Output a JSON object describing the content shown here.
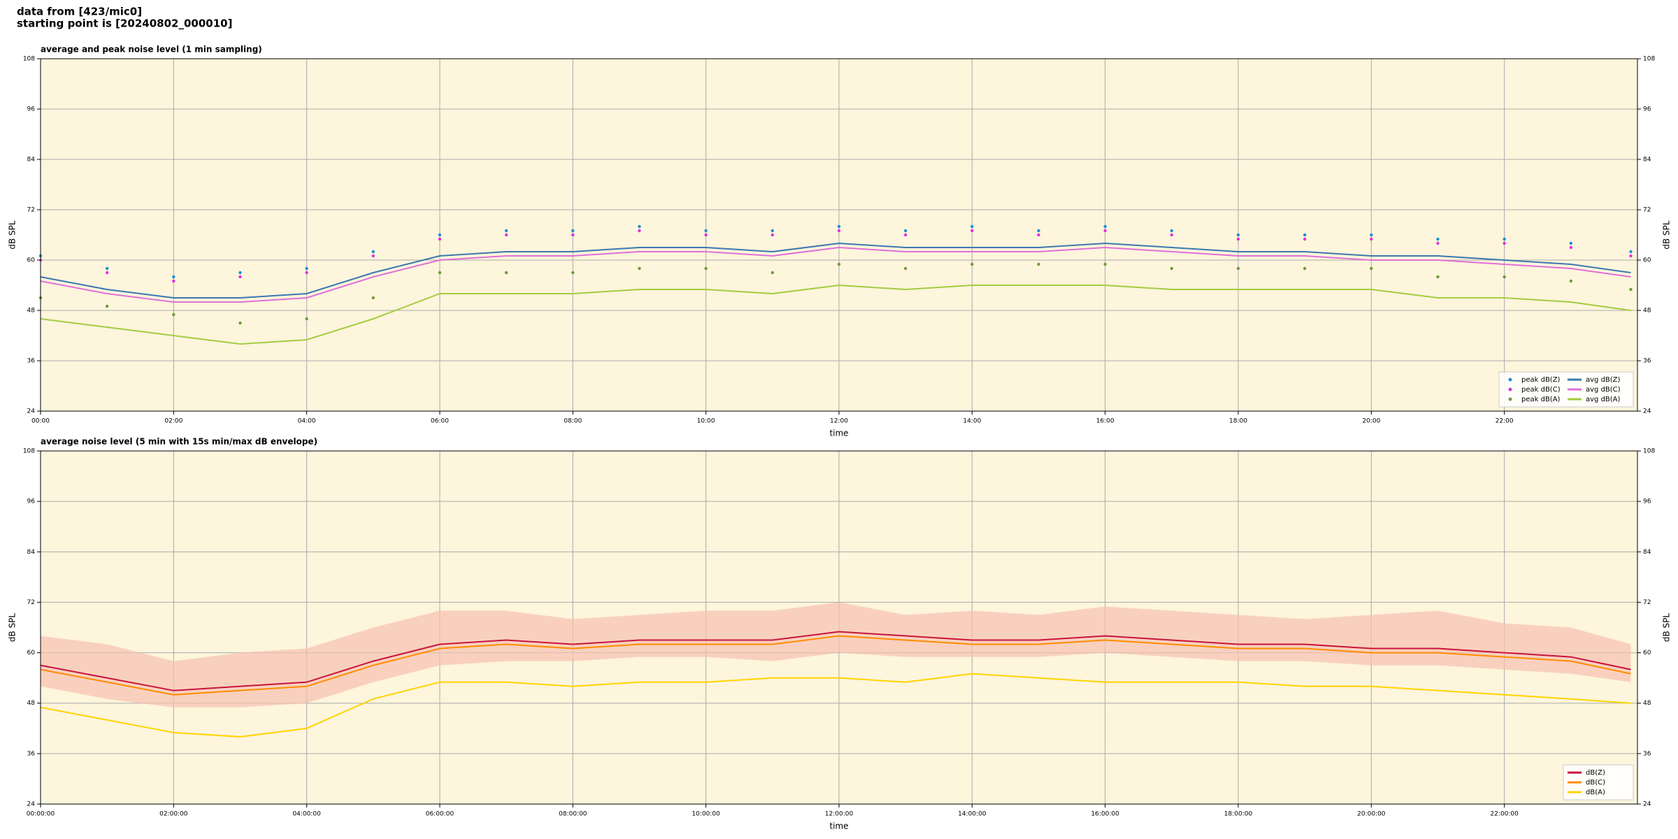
{
  "header": {
    "lines": [
      "data from [423/mic0]",
      "starting point is [20240802_000010]"
    ]
  },
  "chart_data": [
    {
      "type": "line",
      "title": "average and peak noise level (1 min sampling)",
      "xlabel": "time",
      "ylabel": "dB SPL",
      "xlim": [
        0,
        24
      ],
      "ylim": [
        24,
        108
      ],
      "yticks": [
        24,
        36,
        48,
        60,
        72,
        84,
        96,
        108
      ],
      "xticks": [
        {
          "value": 0,
          "label": "00:00"
        },
        {
          "value": 2,
          "label": "02:00"
        },
        {
          "value": 4,
          "label": "04:00"
        },
        {
          "value": 6,
          "label": "06:00"
        },
        {
          "value": 8,
          "label": "08:00"
        },
        {
          "value": 10,
          "label": "10:00"
        },
        {
          "value": 12,
          "label": "12:00"
        },
        {
          "value": 14,
          "label": "14:00"
        },
        {
          "value": 16,
          "label": "16:00"
        },
        {
          "value": 18,
          "label": "18:00"
        },
        {
          "value": 20,
          "label": "20:00"
        },
        {
          "value": 22,
          "label": "22:00"
        }
      ],
      "grid": true,
      "background": "#fdf5dc",
      "legend": "lower right",
      "legend_columns": 2,
      "x": [
        0,
        1,
        2,
        3,
        4,
        5,
        6,
        7,
        8,
        9,
        10,
        11,
        12,
        13,
        14,
        15,
        16,
        17,
        18,
        19,
        20,
        21,
        22,
        23,
        23.9
      ],
      "series": [
        {
          "name": "peak dB(Z)",
          "style": "points",
          "color": "#1f8fd0",
          "values": [
            61,
            58,
            56,
            57,
            58,
            62,
            66,
            67,
            67,
            68,
            67,
            67,
            68,
            67,
            68,
            67,
            68,
            67,
            66,
            66,
            66,
            65,
            65,
            64,
            62
          ]
        },
        {
          "name": "peak dB(C)",
          "style": "points",
          "color": "#e030e0",
          "values": [
            60,
            57,
            55,
            56,
            57,
            61,
            65,
            66,
            66,
            67,
            66,
            66,
            67,
            66,
            67,
            66,
            67,
            66,
            65,
            65,
            65,
            64,
            64,
            63,
            61
          ]
        },
        {
          "name": "peak dB(A)",
          "style": "points",
          "color": "#6f9a3a",
          "values": [
            51,
            49,
            47,
            45,
            46,
            51,
            57,
            57,
            57,
            58,
            58,
            57,
            59,
            58,
            59,
            59,
            59,
            58,
            58,
            58,
            58,
            56,
            56,
            55,
            53
          ]
        },
        {
          "name": "avg dB(Z)",
          "style": "line",
          "color": "#3b78b0",
          "values": [
            56,
            53,
            51,
            51,
            52,
            57,
            61,
            62,
            62,
            63,
            63,
            62,
            64,
            63,
            63,
            63,
            64,
            63,
            62,
            62,
            61,
            61,
            60,
            59,
            57
          ]
        },
        {
          "name": "avg dB(C)",
          "style": "line",
          "color": "#e070d8",
          "values": [
            55,
            52,
            50,
            50,
            51,
            56,
            60,
            61,
            61,
            62,
            62,
            61,
            63,
            62,
            62,
            62,
            63,
            62,
            61,
            61,
            60,
            60,
            59,
            58,
            56
          ]
        },
        {
          "name": "avg dB(A)",
          "style": "line",
          "color": "#a4cc40",
          "values": [
            46,
            44,
            42,
            40,
            41,
            46,
            52,
            52,
            52,
            53,
            53,
            52,
            54,
            53,
            54,
            54,
            54,
            53,
            53,
            53,
            53,
            51,
            51,
            50,
            48
          ]
        }
      ]
    },
    {
      "type": "line",
      "title": "average noise level (5 min with 15s min/max dB envelope)",
      "xlabel": "time",
      "ylabel": "dB SPL",
      "xlim": [
        0,
        24
      ],
      "ylim": [
        24,
        108
      ],
      "yticks": [
        24,
        36,
        48,
        60,
        72,
        84,
        96,
        108
      ],
      "xticks": [
        {
          "value": 0,
          "label": "00:00:00"
        },
        {
          "value": 2,
          "label": "02:00:00"
        },
        {
          "value": 4,
          "label": "04:00:00"
        },
        {
          "value": 6,
          "label": "06:00:00"
        },
        {
          "value": 8,
          "label": "08:00:00"
        },
        {
          "value": 10,
          "label": "10:00:00"
        },
        {
          "value": 12,
          "label": "12:00:00"
        },
        {
          "value": 14,
          "label": "14:00:00"
        },
        {
          "value": 16,
          "label": "16:00:00"
        },
        {
          "value": 18,
          "label": "18:00:00"
        },
        {
          "value": 20,
          "label": "20:00:00"
        },
        {
          "value": 22,
          "label": "22:00:00"
        }
      ],
      "grid": true,
      "background": "#fdf5dc",
      "legend": "lower right",
      "legend_columns": 1,
      "x": [
        0,
        1,
        2,
        3,
        4,
        5,
        6,
        7,
        8,
        9,
        10,
        11,
        12,
        13,
        14,
        15,
        16,
        17,
        18,
        19,
        20,
        21,
        22,
        23,
        23.9
      ],
      "envelope": {
        "color": "#f6c0b0",
        "lower": [
          52,
          49,
          47,
          47,
          48,
          53,
          57,
          58,
          58,
          59,
          59,
          58,
          60,
          59,
          59,
          59,
          60,
          59,
          58,
          58,
          57,
          57,
          56,
          55,
          53
        ],
        "upper": [
          64,
          62,
          58,
          60,
          61,
          66,
          70,
          70,
          68,
          69,
          70,
          70,
          72,
          69,
          70,
          69,
          71,
          70,
          69,
          68,
          69,
          70,
          67,
          66,
          62
        ]
      },
      "series": [
        {
          "name": "dB(Z)",
          "style": "line",
          "color": "#c8143c",
          "values": [
            57,
            54,
            51,
            52,
            53,
            58,
            62,
            63,
            62,
            63,
            63,
            63,
            65,
            64,
            63,
            63,
            64,
            63,
            62,
            62,
            61,
            61,
            60,
            59,
            56
          ]
        },
        {
          "name": "dB(C)",
          "style": "line",
          "color": "#ff8c00",
          "values": [
            56,
            53,
            50,
            51,
            52,
            57,
            61,
            62,
            61,
            62,
            62,
            62,
            64,
            63,
            62,
            62,
            63,
            62,
            61,
            61,
            60,
            60,
            59,
            58,
            55
          ]
        },
        {
          "name": "dB(A)",
          "style": "line",
          "color": "#ffd400",
          "values": [
            47,
            44,
            41,
            40,
            42,
            49,
            53,
            53,
            52,
            53,
            53,
            54,
            54,
            53,
            55,
            54,
            53,
            53,
            53,
            52,
            52,
            51,
            50,
            49,
            48
          ]
        }
      ]
    }
  ]
}
